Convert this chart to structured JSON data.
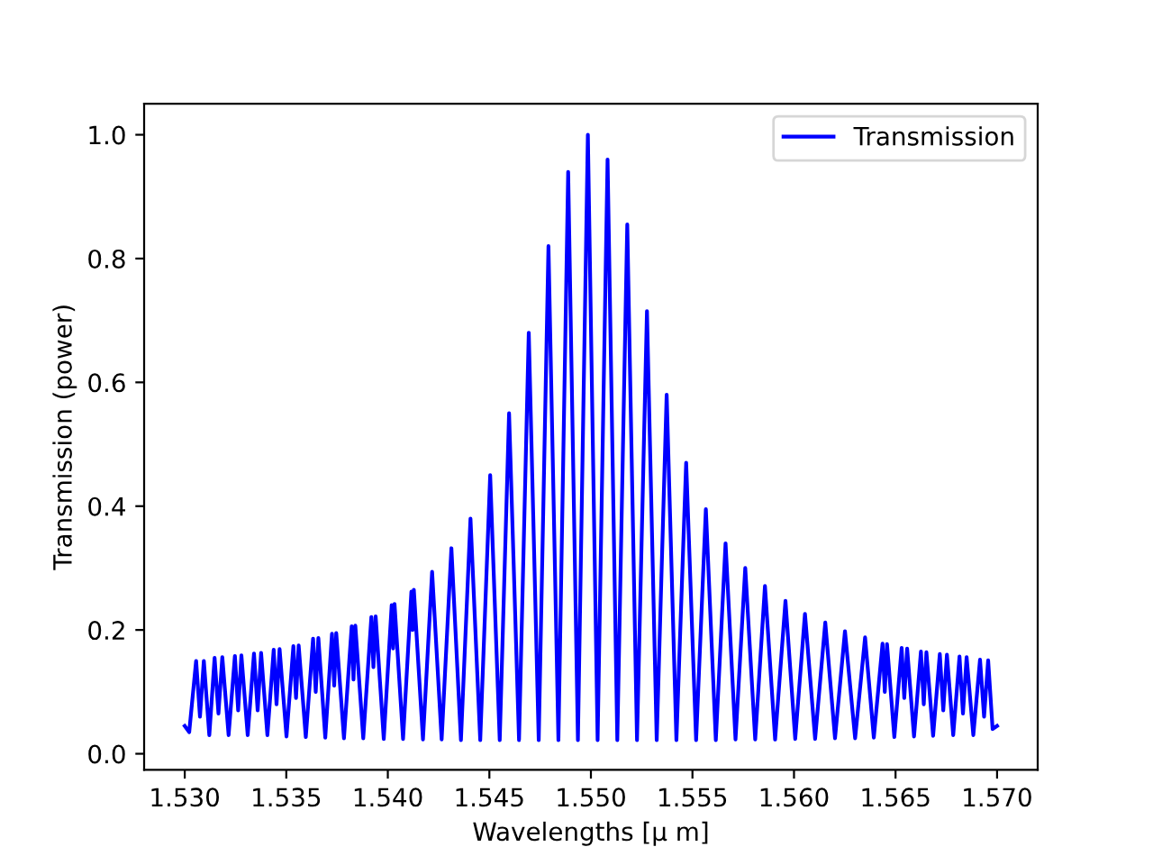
{
  "chart_data": {
    "type": "line",
    "xlabel": "Wavelengths [μ m]",
    "ylabel": "Transmission (power)",
    "xlim": [
      1.528,
      1.572
    ],
    "ylim": [
      -0.026,
      1.05
    ],
    "xticks": [
      {
        "value": 1.53,
        "label": "1.530"
      },
      {
        "value": 1.535,
        "label": "1.535"
      },
      {
        "value": 1.54,
        "label": "1.540"
      },
      {
        "value": 1.545,
        "label": "1.545"
      },
      {
        "value": 1.55,
        "label": "1.550"
      },
      {
        "value": 1.555,
        "label": "1.555"
      },
      {
        "value": 1.56,
        "label": "1.560"
      },
      {
        "value": 1.565,
        "label": "1.565"
      },
      {
        "value": 1.57,
        "label": "1.570"
      }
    ],
    "yticks": [
      {
        "value": 0,
        "label": "0.0"
      },
      {
        "value": 0.2,
        "label": "0.2"
      },
      {
        "value": 0.4,
        "label": "0.4"
      },
      {
        "value": 0.6,
        "label": "0.6"
      },
      {
        "value": 0.8,
        "label": "0.8"
      },
      {
        "value": 1.0,
        "label": "1.0"
      }
    ],
    "grid": false,
    "legend": "top right",
    "line_style": "solid",
    "marker": "none",
    "series": [
      {
        "name": "Transmission",
        "color": "#0000ff",
        "x": [
          1.53,
          1.53022,
          1.53056,
          1.53075,
          1.53094,
          1.53121,
          1.53147,
          1.53166,
          1.53185,
          1.53216,
          1.53247,
          1.53263,
          1.53279,
          1.5331,
          1.53341,
          1.53359,
          1.53376,
          1.53407,
          1.53438,
          1.53452,
          1.53467,
          1.53501,
          1.53535,
          1.53548,
          1.53561,
          1.53596,
          1.53632,
          1.53645,
          1.53658,
          1.53692,
          1.53725,
          1.53736,
          1.53746,
          1.53784,
          1.53822,
          1.53831,
          1.5384,
          1.53879,
          1.53919,
          1.53929,
          1.5394,
          1.5398,
          1.54019,
          1.54026,
          1.54033,
          1.54075,
          1.54116,
          1.54122,
          1.54128,
          1.54173,
          1.54218,
          1.54265,
          1.54313,
          1.5436,
          1.54407,
          1.54455,
          1.54504,
          1.54551,
          1.54597,
          1.54646,
          1.54694,
          1.54743,
          1.54791,
          1.5484,
          1.54888,
          1.54936,
          1.54985,
          1.55033,
          1.55082,
          1.5513,
          1.55179,
          1.55227,
          1.55276,
          1.55324,
          1.55373,
          1.55421,
          1.55469,
          1.55518,
          1.55566,
          1.55615,
          1.55663,
          1.55712,
          1.5576,
          1.55809,
          1.55857,
          1.55907,
          1.55958,
          1.56006,
          1.56054,
          1.56104,
          1.56154,
          1.56202,
          1.56251,
          1.56301,
          1.5635,
          1.56393,
          1.56436,
          1.56447,
          1.56458,
          1.56494,
          1.5653,
          1.56543,
          1.56557,
          1.56591,
          1.56625,
          1.56639,
          1.56652,
          1.56685,
          1.56718,
          1.56735,
          1.56753,
          1.56784,
          1.56815,
          1.56832,
          1.5685,
          1.56883,
          1.56916,
          1.56936,
          1.56956,
          1.56978,
          1.57
        ],
        "values": [
          0.045,
          0.035,
          0.15,
          0.06,
          0.15,
          0.03,
          0.155,
          0.065,
          0.156,
          0.03,
          0.158,
          0.07,
          0.159,
          0.03,
          0.162,
          0.07,
          0.163,
          0.03,
          0.168,
          0.08,
          0.169,
          0.028,
          0.174,
          0.09,
          0.175,
          0.027,
          0.186,
          0.1,
          0.187,
          0.026,
          0.194,
          0.11,
          0.195,
          0.025,
          0.206,
          0.12,
          0.207,
          0.025,
          0.221,
          0.14,
          0.222,
          0.024,
          0.24,
          0.17,
          0.242,
          0.024,
          0.262,
          0.2,
          0.265,
          0.023,
          0.294,
          0.023,
          0.332,
          0.022,
          0.38,
          0.022,
          0.45,
          0.022,
          0.55,
          0.022,
          0.68,
          0.022,
          0.82,
          0.022,
          0.94,
          0.022,
          1.0,
          0.022,
          0.96,
          0.022,
          0.855,
          0.022,
          0.715,
          0.022,
          0.58,
          0.022,
          0.47,
          0.022,
          0.395,
          0.022,
          0.34,
          0.023,
          0.3,
          0.023,
          0.271,
          0.023,
          0.247,
          0.024,
          0.226,
          0.024,
          0.212,
          0.025,
          0.198,
          0.025,
          0.188,
          0.026,
          0.178,
          0.1,
          0.177,
          0.027,
          0.171,
          0.09,
          0.17,
          0.028,
          0.165,
          0.08,
          0.164,
          0.029,
          0.161,
          0.07,
          0.16,
          0.03,
          0.157,
          0.065,
          0.156,
          0.03,
          0.152,
          0.06,
          0.151,
          0.04,
          0.045
        ]
      }
    ]
  }
}
